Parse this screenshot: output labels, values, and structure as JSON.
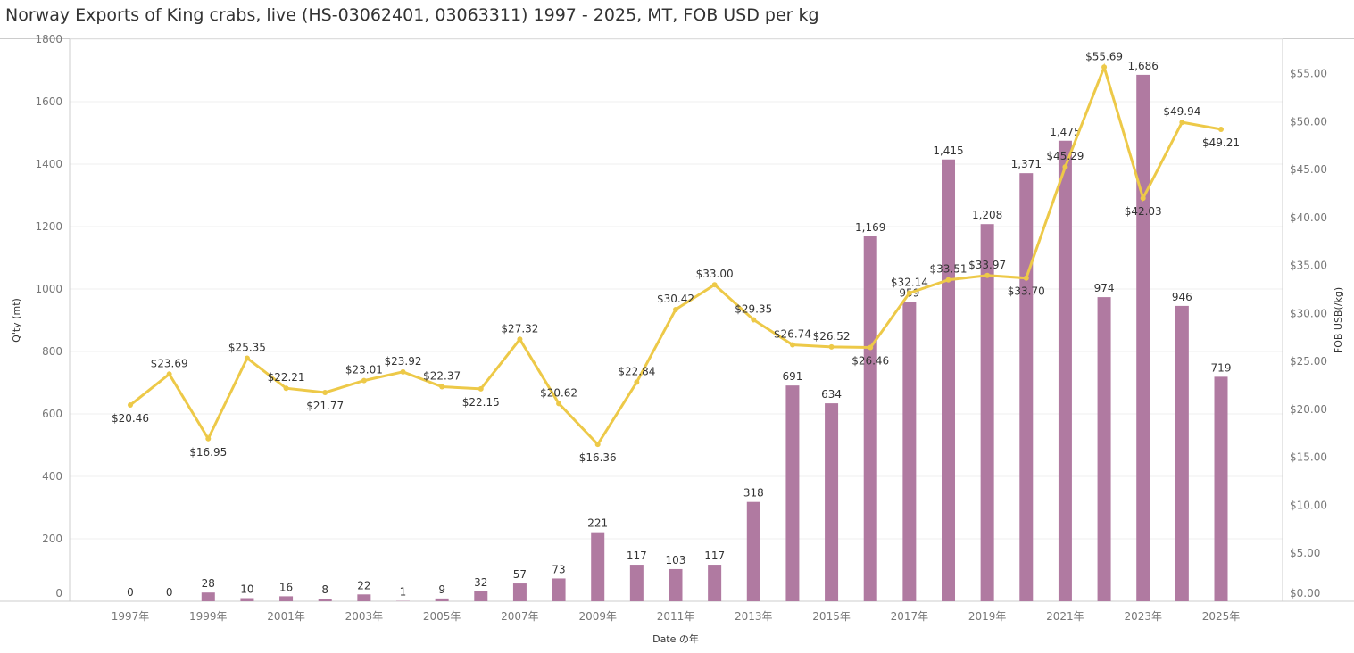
{
  "title": "Norway Exports of King crabs, live (HS-03062401, 03063311) 1997 - 2025, MT, FOB USD per kg",
  "chart_data": {
    "type": "bar+line",
    "xlabel": "Date の年",
    "ylabel": "Q'ty (mt)",
    "y2label": "FOB USB(/kg)",
    "ylim": [
      0,
      1800
    ],
    "y2lim": [
      0,
      58.6
    ],
    "yticks": [
      0,
      200,
      400,
      600,
      800,
      1000,
      1200,
      1400,
      1600,
      1800
    ],
    "y2ticks": [
      "$0.00",
      "$5.00",
      "$10.00",
      "$15.00",
      "$20.00",
      "$25.00",
      "$30.00",
      "$35.00",
      "$40.00",
      "$45.00",
      "$50.00",
      "$55.00"
    ],
    "xtick_labels": [
      "1997年",
      "1999年",
      "2001年",
      "2003年",
      "2005年",
      "2007年",
      "2009年",
      "2011年",
      "2013年",
      "2015年",
      "2017年",
      "2019年",
      "2021年",
      "2023年",
      "2025年"
    ],
    "grid": true,
    "x": [
      1997,
      1998,
      1999,
      2000,
      2001,
      2002,
      2003,
      2004,
      2005,
      2006,
      2007,
      2008,
      2009,
      2010,
      2011,
      2012,
      2013,
      2014,
      2015,
      2016,
      2017,
      2018,
      2019,
      2020,
      2021,
      2022,
      2023,
      2024,
      2025
    ],
    "series": [
      {
        "type": "bar",
        "axis": "left",
        "color": "#b07aa1",
        "values": [
          0,
          0,
          28,
          10,
          16,
          8,
          22,
          1,
          9,
          32,
          57,
          73,
          221,
          117,
          103,
          117,
          318,
          691,
          634,
          1169,
          959,
          1415,
          1208,
          1371,
          1475,
          974,
          1686,
          946,
          719
        ],
        "labels": [
          "0",
          "0",
          "28",
          "10",
          "16",
          "8",
          "22",
          "1",
          "9",
          "32",
          "57",
          "73",
          "221",
          "117",
          "103",
          "117",
          "318",
          "691",
          "634",
          "1,169",
          "959",
          "1,415",
          "1,208",
          "1,371",
          "1,475",
          "974",
          "1,686",
          "946",
          "719"
        ]
      },
      {
        "type": "line",
        "axis": "right",
        "color": "#edc948",
        "values": [
          20.46,
          23.69,
          16.95,
          25.35,
          22.21,
          21.77,
          23.01,
          23.92,
          22.37,
          22.15,
          27.32,
          20.62,
          16.36,
          22.84,
          30.42,
          33.0,
          29.35,
          26.74,
          26.52,
          26.46,
          32.14,
          33.51,
          33.97,
          33.7,
          45.29,
          55.69,
          42.03,
          49.94,
          49.21
        ]
      }
    ]
  }
}
